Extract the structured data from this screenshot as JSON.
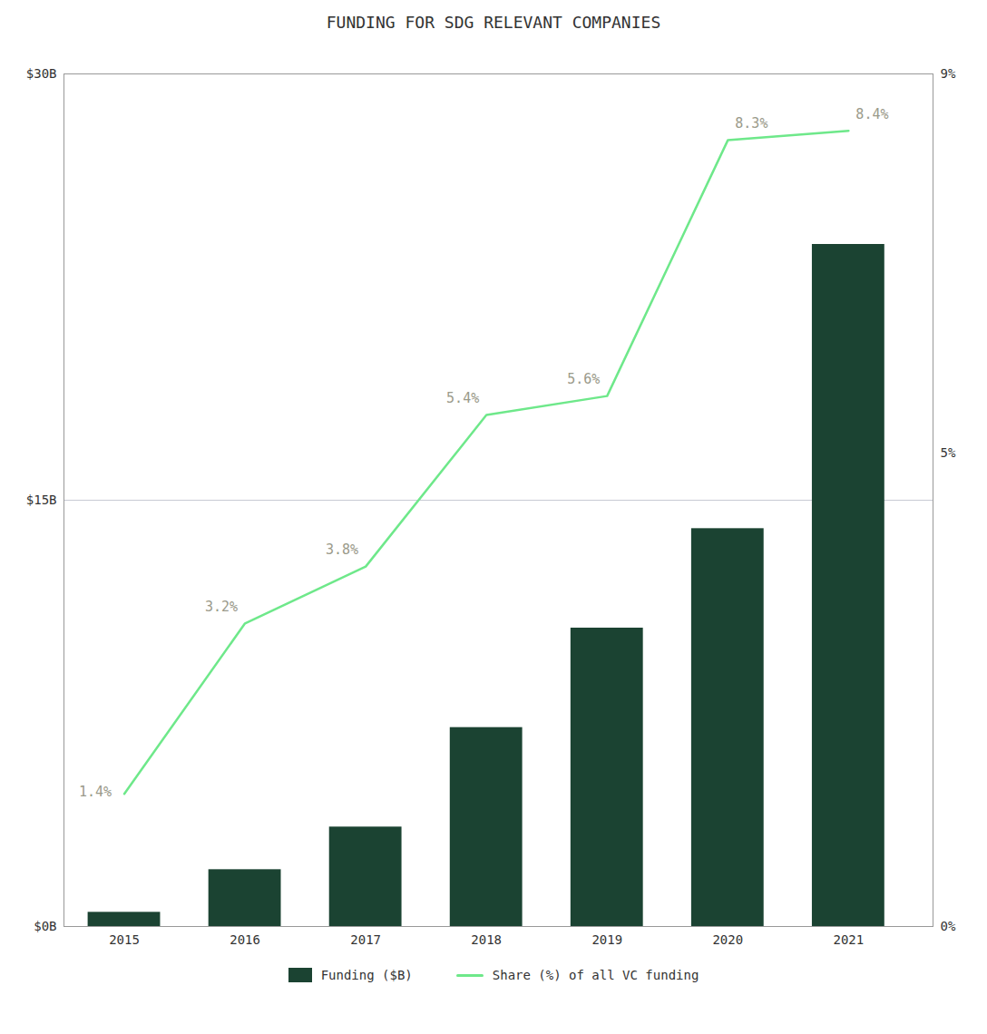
{
  "chart_data": {
    "type": "bar",
    "title": "FUNDING FOR SDG RELEVANT COMPANIES",
    "x": [
      2015,
      2016,
      2017,
      2018,
      2019,
      2020,
      2021
    ],
    "xlim": [
      2014.5,
      2021.7
    ],
    "xticks": [
      2015,
      2016,
      2017,
      2018,
      2019,
      2020,
      2021
    ],
    "ylim": [
      0,
      30
    ],
    "yticks": [
      {
        "value": 0,
        "label": "$0B"
      },
      {
        "value": 15,
        "label": "$15B"
      },
      {
        "value": 30,
        "label": "$30B"
      }
    ],
    "y2lim": [
      0,
      9
    ],
    "y2ticks": [
      {
        "value": 0,
        "label": "0%"
      },
      {
        "value": 5,
        "label": "5%"
      },
      {
        "value": 9,
        "label": "9%"
      }
    ],
    "grid": true,
    "legend": "bottom",
    "series": [
      {
        "name": "Funding ($B)",
        "type": "bar",
        "color": "#1B4332",
        "values": [
          0.5,
          2.0,
          3.5,
          7.0,
          10.5,
          14.0,
          24.0
        ]
      },
      {
        "name": "Share (%) of all VC funding",
        "type": "line",
        "axis": "y2",
        "color": "#6EE88A",
        "values": [
          1.4,
          3.2,
          3.8,
          5.4,
          5.6,
          8.3,
          8.4
        ],
        "data_labels": true,
        "value_labels": [
          "1.4%",
          "3.2%",
          "3.8%",
          "5.4%",
          "5.6%",
          "8.3%",
          "8.4%"
        ]
      }
    ]
  }
}
